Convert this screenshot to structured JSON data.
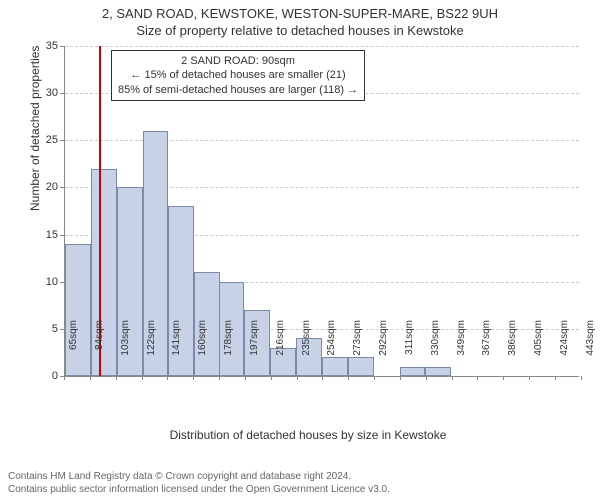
{
  "title_line1": "2, SAND ROAD, KEWSTOKE, WESTON-SUPER-MARE, BS22 9UH",
  "title_line2": "Size of property relative to detached houses in Kewstoke",
  "ylabel": "Number of detached properties",
  "xlabel": "Distribution of detached houses by size in Kewstoke",
  "footnote_line1": "Contains HM Land Registry data © Crown copyright and database right 2024.",
  "footnote_line2": "Contains public sector information licensed under the Open Government Licence v3.0.",
  "annotation": {
    "line1": "2 SAND ROAD: 90sqm",
    "line2": "← 15% of detached houses are smaller (21)",
    "line3": "85% of semi-detached houses are larger (118) →"
  },
  "chart": {
    "type": "histogram",
    "ymax": 35,
    "ytick_step": 5,
    "background_color": "#ffffff",
    "grid_color": "#cccccc",
    "axis_color": "#888888",
    "bar_fill": "#c7d2e7",
    "bar_border": "#7a8aa8",
    "refline_color": "#cc0000",
    "refline_x": 90,
    "xticks": [
      "65sqm",
      "84sqm",
      "103sqm",
      "122sqm",
      "141sqm",
      "160sqm",
      "178sqm",
      "197sqm",
      "216sqm",
      "235sqm",
      "254sqm",
      "273sqm",
      "292sqm",
      "311sqm",
      "330sqm",
      "349sqm",
      "367sqm",
      "386sqm",
      "405sqm",
      "424sqm",
      "443sqm"
    ],
    "xmin": 65,
    "xmax": 443,
    "bars": [
      {
        "x0": 65,
        "count": 14
      },
      {
        "x0": 84,
        "count": 22
      },
      {
        "x0": 103,
        "count": 20
      },
      {
        "x0": 122,
        "count": 26
      },
      {
        "x0": 141,
        "count": 18
      },
      {
        "x0": 160,
        "count": 11
      },
      {
        "x0": 178,
        "count": 10
      },
      {
        "x0": 197,
        "count": 7
      },
      {
        "x0": 216,
        "count": 3
      },
      {
        "x0": 235,
        "count": 4
      },
      {
        "x0": 254,
        "count": 2
      },
      {
        "x0": 273,
        "count": 2
      },
      {
        "x0": 292,
        "count": 0
      },
      {
        "x0": 311,
        "count": 1
      },
      {
        "x0": 330,
        "count": 1
      },
      {
        "x0": 349,
        "count": 0
      },
      {
        "x0": 367,
        "count": 0
      },
      {
        "x0": 386,
        "count": 0
      },
      {
        "x0": 405,
        "count": 0
      },
      {
        "x0": 424,
        "count": 0
      }
    ],
    "bin_width": 19
  }
}
